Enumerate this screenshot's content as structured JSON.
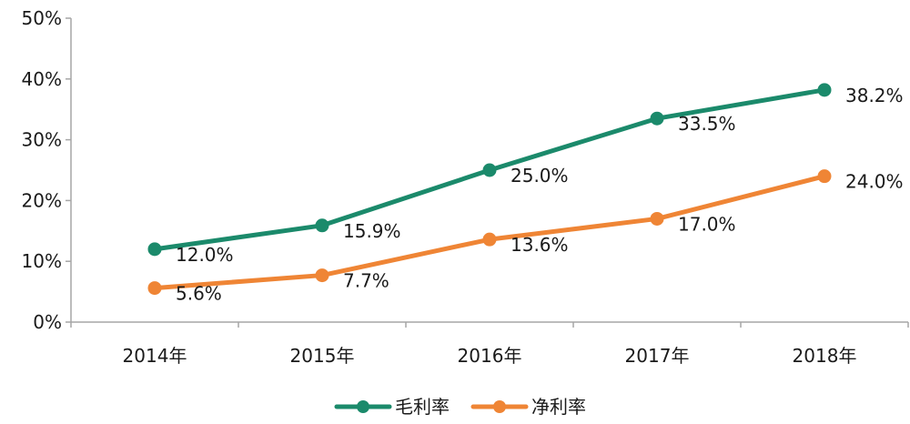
{
  "chart_data": {
    "type": "line",
    "categories": [
      "2014年",
      "2015年",
      "2016年",
      "2017年",
      "2018年"
    ],
    "series": [
      {
        "name": "毛利率",
        "color": "#1b8a6b",
        "values": [
          12.0,
          15.9,
          25.0,
          33.5,
          38.2
        ],
        "labels": [
          "12.0%",
          "15.9%",
          "25.0%",
          "33.5%",
          "38.2%"
        ]
      },
      {
        "name": "净利率",
        "color": "#ef8535",
        "values": [
          5.6,
          7.7,
          13.6,
          17.0,
          24.0
        ],
        "labels": [
          "5.6%",
          "7.7%",
          "13.6%",
          "17.0%",
          "24.0%"
        ]
      }
    ],
    "y_ticks": [
      "0%",
      "10%",
      "20%",
      "30%",
      "40%",
      "50%"
    ],
    "ylim": [
      0,
      50
    ],
    "y_unit": "%",
    "grid": false,
    "legend_position": "bottom-center"
  }
}
